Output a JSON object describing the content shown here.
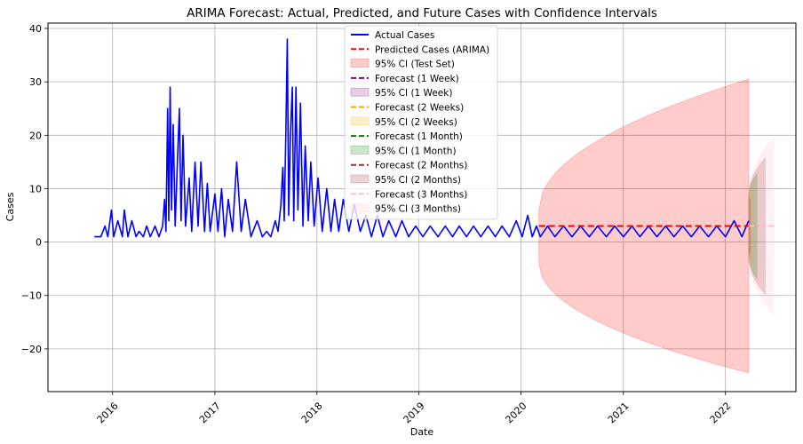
{
  "chart_data": {
    "type": "line",
    "title": "ARIMA Forecast: Actual, Predicted, and Future Cases with Confidence Intervals",
    "xlabel": "Date",
    "ylabel": "Cases",
    "xlim": [
      "2015-05-15",
      "2022-09-10"
    ],
    "ylim": [
      -28,
      41
    ],
    "x_ticks": [
      "2016",
      "2017",
      "2018",
      "2019",
      "2020",
      "2021",
      "2022"
    ],
    "y_ticks": [
      40,
      30,
      20,
      10,
      0,
      -10,
      -20
    ],
    "y_tick_labels": [
      "40",
      "30",
      "20",
      "10",
      "0",
      "−10",
      "−20"
    ],
    "grid": true,
    "legend_position": "top-center",
    "actual_series": {
      "name": "Actual Cases",
      "color": "#0000ff",
      "points": [
        [
          "2015-10-28",
          1
        ],
        [
          "2015-11-20",
          1
        ],
        [
          "2015-12-05",
          3
        ],
        [
          "2015-12-15",
          1
        ],
        [
          "2015-12-28",
          6
        ],
        [
          "2016-01-05",
          1
        ],
        [
          "2016-01-20",
          4
        ],
        [
          "2016-02-05",
          1
        ],
        [
          "2016-02-12",
          6
        ],
        [
          "2016-02-25",
          1
        ],
        [
          "2016-03-10",
          4
        ],
        [
          "2016-03-25",
          1
        ],
        [
          "2016-04-05",
          2
        ],
        [
          "2016-04-20",
          1
        ],
        [
          "2016-05-02",
          3
        ],
        [
          "2016-05-15",
          1
        ],
        [
          "2016-06-01",
          3
        ],
        [
          "2016-06-15",
          1
        ],
        [
          "2016-06-28",
          3
        ],
        [
          "2016-07-05",
          8
        ],
        [
          "2016-07-10",
          2
        ],
        [
          "2016-07-16",
          25
        ],
        [
          "2016-07-20",
          4
        ],
        [
          "2016-07-25",
          29
        ],
        [
          "2016-07-30",
          6
        ],
        [
          "2016-08-05",
          22
        ],
        [
          "2016-08-12",
          3
        ],
        [
          "2016-08-20",
          15
        ],
        [
          "2016-08-27",
          25
        ],
        [
          "2016-09-02",
          4
        ],
        [
          "2016-09-09",
          20
        ],
        [
          "2016-09-18",
          3
        ],
        [
          "2016-10-01",
          12
        ],
        [
          "2016-10-10",
          2
        ],
        [
          "2016-10-22",
          15
        ],
        [
          "2016-11-02",
          3
        ],
        [
          "2016-11-12",
          15
        ],
        [
          "2016-11-25",
          2
        ],
        [
          "2016-12-05",
          11
        ],
        [
          "2016-12-15",
          2
        ],
        [
          "2017-01-01",
          9
        ],
        [
          "2017-01-12",
          2
        ],
        [
          "2017-01-25",
          10
        ],
        [
          "2017-02-05",
          1
        ],
        [
          "2017-02-18",
          8
        ],
        [
          "2017-03-05",
          2
        ],
        [
          "2017-03-20",
          15
        ],
        [
          "2017-04-05",
          2
        ],
        [
          "2017-04-20",
          8
        ],
        [
          "2017-05-10",
          1
        ],
        [
          "2017-06-01",
          4
        ],
        [
          "2017-06-20",
          1
        ],
        [
          "2017-07-05",
          2
        ],
        [
          "2017-07-20",
          1
        ],
        [
          "2017-08-05",
          4
        ],
        [
          "2017-08-15",
          2
        ],
        [
          "2017-08-25",
          7
        ],
        [
          "2017-09-01",
          14
        ],
        [
          "2017-09-06",
          4
        ],
        [
          "2017-09-12",
          21
        ],
        [
          "2017-09-17",
          38
        ],
        [
          "2017-09-22",
          5
        ],
        [
          "2017-09-28",
          20
        ],
        [
          "2017-10-05",
          29
        ],
        [
          "2017-10-10",
          4
        ],
        [
          "2017-10-18",
          29
        ],
        [
          "2017-10-25",
          6
        ],
        [
          "2017-11-03",
          26
        ],
        [
          "2017-11-12",
          3
        ],
        [
          "2017-11-20",
          18
        ],
        [
          "2017-12-01",
          4
        ],
        [
          "2017-12-10",
          15
        ],
        [
          "2017-12-22",
          3
        ],
        [
          "2018-01-05",
          12
        ],
        [
          "2018-01-20",
          2
        ],
        [
          "2018-02-05",
          10
        ],
        [
          "2018-02-20",
          2
        ],
        [
          "2018-03-05",
          8
        ],
        [
          "2018-03-20",
          2
        ],
        [
          "2018-04-05",
          8
        ],
        [
          "2018-04-25",
          2
        ],
        [
          "2018-05-15",
          7
        ],
        [
          "2018-06-05",
          2
        ],
        [
          "2018-06-25",
          5
        ],
        [
          "2018-07-15",
          1
        ],
        [
          "2018-08-05",
          5
        ],
        [
          "2018-08-25",
          1
        ],
        [
          "2018-09-15",
          4
        ],
        [
          "2018-10-10",
          1
        ],
        [
          "2018-11-01",
          4
        ],
        [
          "2018-11-25",
          1
        ],
        [
          "2018-12-20",
          3
        ],
        [
          "2019-01-15",
          1
        ],
        [
          "2019-02-10",
          3
        ],
        [
          "2019-03-10",
          1
        ],
        [
          "2019-04-05",
          3
        ],
        [
          "2019-05-01",
          1
        ],
        [
          "2019-05-25",
          3
        ],
        [
          "2019-06-20",
          1
        ],
        [
          "2019-07-15",
          3
        ],
        [
          "2019-08-10",
          1
        ],
        [
          "2019-09-05",
          3
        ],
        [
          "2019-10-01",
          1
        ],
        [
          "2019-10-25",
          3
        ],
        [
          "2019-11-20",
          1
        ],
        [
          "2019-12-15",
          4
        ],
        [
          "2020-01-05",
          1
        ],
        [
          "2020-01-25",
          5
        ],
        [
          "2020-02-10",
          1
        ],
        [
          "2020-02-25",
          3
        ],
        [
          "2020-03-10",
          1
        ],
        [
          "2020-04-05",
          3
        ],
        [
          "2020-05-01",
          1
        ],
        [
          "2020-06-01",
          3
        ],
        [
          "2020-07-01",
          1
        ],
        [
          "2020-08-01",
          3
        ],
        [
          "2020-09-01",
          1
        ],
        [
          "2020-10-01",
          3
        ],
        [
          "2020-11-01",
          1
        ],
        [
          "2020-12-01",
          3
        ],
        [
          "2021-01-01",
          1
        ],
        [
          "2021-02-01",
          3
        ],
        [
          "2021-03-01",
          1
        ],
        [
          "2021-04-01",
          3
        ],
        [
          "2021-05-01",
          1
        ],
        [
          "2021-06-01",
          3
        ],
        [
          "2021-07-01",
          1
        ],
        [
          "2021-08-01",
          3
        ],
        [
          "2021-09-01",
          1
        ],
        [
          "2021-10-01",
          3
        ],
        [
          "2021-11-01",
          1
        ],
        [
          "2021-12-01",
          3
        ],
        [
          "2022-01-01",
          1
        ],
        [
          "2022-02-01",
          4
        ],
        [
          "2022-03-01",
          1
        ],
        [
          "2022-03-25",
          4
        ]
      ]
    },
    "predicted_series": {
      "name": "Predicted Cases (ARIMA)",
      "color": "#ff0000",
      "start": "2020-03-05",
      "end": "2022-03-25",
      "value": 3
    },
    "ci_test": {
      "name": "95% CI (Test Set)",
      "color": "#ff0000",
      "start": "2020-03-05",
      "end": "2022-03-25",
      "lower_start": -4,
      "upper_start": 6,
      "lower_end": -24.5,
      "upper_end": 30.5
    },
    "forecasts": [
      {
        "name": "Forecast (1 Week)",
        "ci_name": "95% CI (1 Week)",
        "color": "#800080",
        "start": "2022-03-25",
        "end": "2022-04-01",
        "value": 3,
        "lower_end": -2,
        "upper_end": 8
      },
      {
        "name": "Forecast (2 Weeks)",
        "ci_name": "95% CI (2 Weeks)",
        "color": "#ffa500",
        "start": "2022-03-25",
        "end": "2022-04-08",
        "value": 3,
        "lower_end": -4,
        "upper_end": 10
      },
      {
        "name": "Forecast (1 Month)",
        "ci_name": "95% CI (1 Month)",
        "color": "#008000",
        "start": "2022-03-25",
        "end": "2022-04-25",
        "value": 3,
        "lower_end": -7,
        "upper_end": 13
      },
      {
        "name": "Forecast (2 Months)",
        "ci_name": "95% CI (2 Months)",
        "color": "#a52a2a",
        "start": "2022-03-25",
        "end": "2022-05-25",
        "value": 3,
        "lower_end": -10,
        "upper_end": 16
      },
      {
        "name": "Forecast (3 Months)",
        "ci_name": "95% CI (3 Months)",
        "color": "#ffc0cb",
        "start": "2022-03-25",
        "end": "2022-06-25",
        "value": 3,
        "lower_end": -14,
        "upper_end": 20
      }
    ],
    "legend": [
      {
        "label": "Actual Cases",
        "kind": "line",
        "color": "#0000ff"
      },
      {
        "label": "Predicted Cases (ARIMA)",
        "kind": "dash",
        "color": "#ff0000"
      },
      {
        "label": "95% CI (Test Set)",
        "kind": "patch",
        "color": "#ff0000"
      },
      {
        "label": "Forecast (1 Week)",
        "kind": "dash",
        "color": "#800080"
      },
      {
        "label": "95% CI (1 Week)",
        "kind": "patch",
        "color": "#800080"
      },
      {
        "label": "Forecast (2 Weeks)",
        "kind": "dash",
        "color": "#ffa500"
      },
      {
        "label": "95% CI (2 Weeks)",
        "kind": "patch",
        "color": "#ffa500"
      },
      {
        "label": "Forecast (1 Month)",
        "kind": "dash",
        "color": "#008000"
      },
      {
        "label": "95% CI (1 Month)",
        "kind": "patch",
        "color": "#008000"
      },
      {
        "label": "Forecast (2 Months)",
        "kind": "dash",
        "color": "#a52a2a"
      },
      {
        "label": "95% CI (2 Months)",
        "kind": "patch",
        "color": "#a52a2a"
      },
      {
        "label": "Forecast (3 Months)",
        "kind": "dash",
        "color": "#ffc0cb"
      },
      {
        "label": "95% CI (3 Months)",
        "kind": "patch",
        "color": "#ffc0cb"
      }
    ]
  }
}
